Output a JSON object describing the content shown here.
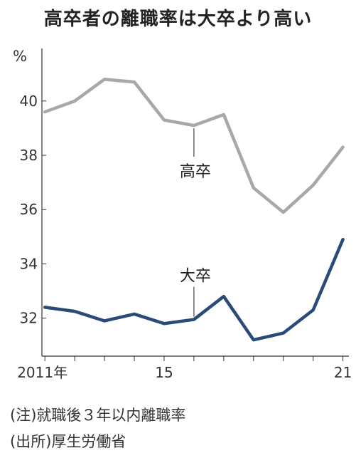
{
  "chart_data": {
    "type": "line",
    "title": "高卒者の離職率は大卒より高い",
    "unit_label": "%",
    "x": [
      2011,
      2012,
      2013,
      2014,
      2015,
      2016,
      2017,
      2018,
      2019,
      2020,
      2021
    ],
    "x_tick_labels": [
      {
        "x": 2011,
        "label": "2011年"
      },
      {
        "x": 2015,
        "label": "15"
      },
      {
        "x": 2021,
        "label": "21"
      }
    ],
    "y_ticks": [
      32,
      34,
      36,
      38,
      40
    ],
    "ylim": [
      30.6,
      42.2
    ],
    "xlim": [
      2010.9,
      2021.2
    ],
    "series": [
      {
        "name": "高卒",
        "color": "#a8a8a8",
        "values": [
          39.6,
          40.0,
          40.8,
          40.7,
          39.3,
          39.1,
          39.5,
          36.8,
          35.9,
          36.9,
          38.3
        ]
      },
      {
        "name": "大卒",
        "color": "#2a4a78",
        "values": [
          32.4,
          32.25,
          31.9,
          32.15,
          31.8,
          31.95,
          32.8,
          31.2,
          31.45,
          32.3,
          34.9
        ]
      }
    ],
    "series_labels": [
      {
        "series": 0,
        "text": "高卒",
        "at_x": 2016
      },
      {
        "series": 1,
        "text": "大卒",
        "at_x": 2016
      }
    ]
  },
  "notes": {
    "note": "(注)就職後３年以内離職率",
    "source": "(出所)厚生労働省"
  }
}
